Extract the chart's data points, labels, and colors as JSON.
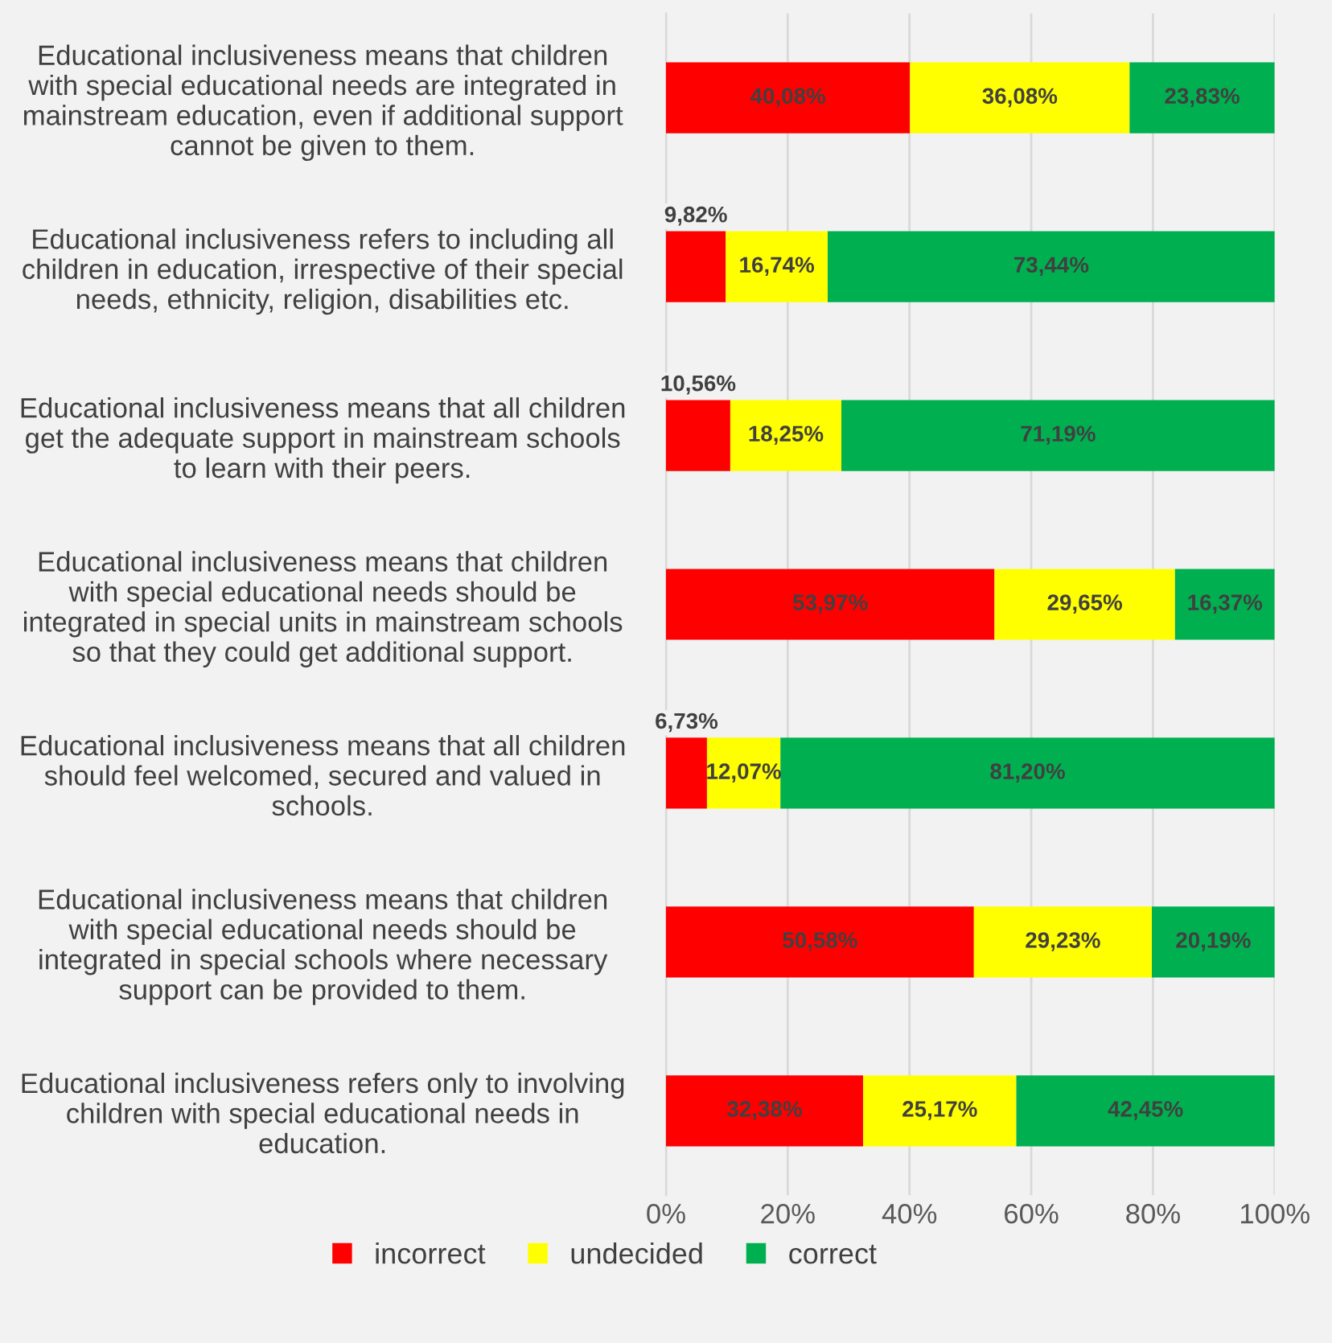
{
  "chart_data": {
    "type": "bar",
    "orientation": "horizontal",
    "stacked": true,
    "categories": [
      "Educational inclusiveness means that children\nwith special educational needs are integrated in\nmainstream education, even if additional support\ncannot be given to them.",
      "Educational inclusiveness refers to including all\nchildren in education, irrespective of their special\nneeds, ethnicity, religion, disabilities etc.",
      "Educational inclusiveness means that all children\nget the adequate support in mainstream schools\nto learn with their peers.",
      "Educational inclusiveness means that children\nwith special educational needs should be\nintegrated in special units in mainstream schools\nso that they could get additional support.",
      "Educational inclusiveness means that all children\nshould feel welcomed, secured and valued in\nschools.",
      "Educational inclusiveness means that children\nwith special educational needs should be\nintegrated in special schools where necessary\nsupport can be provided to them.",
      "Educational inclusiveness refers only to involving\nchildren with special educational needs in\neducation."
    ],
    "series": [
      {
        "name": "incorrect",
        "color": "#ff0000",
        "values": [
          40.08,
          9.82,
          10.56,
          53.97,
          6.73,
          50.58,
          32.38
        ],
        "value_labels": [
          "40,08%",
          "9,82%",
          "10,56%",
          "53,97%",
          "6,73%",
          "50,58%",
          "32,38%"
        ]
      },
      {
        "name": "undecided",
        "color": "#ffff00",
        "values": [
          36.08,
          16.74,
          18.25,
          29.65,
          12.07,
          29.23,
          25.17
        ],
        "value_labels": [
          "36,08%",
          "16,74%",
          "18,25%",
          "29,65%",
          "12,07%",
          "29,23%",
          "25,17%"
        ]
      },
      {
        "name": "correct",
        "color": "#00b050",
        "values": [
          23.83,
          73.44,
          71.19,
          16.37,
          81.2,
          20.19,
          42.45
        ],
        "value_labels": [
          "23,83%",
          "73,44%",
          "71,19%",
          "16,37%",
          "81,20%",
          "20,19%",
          "42,45%"
        ]
      }
    ],
    "xlim": [
      0,
      100
    ],
    "xticks": [
      {
        "value": 0,
        "label": "0%"
      },
      {
        "value": 20,
        "label": "20%"
      },
      {
        "value": 40,
        "label": "40%"
      },
      {
        "value": 60,
        "label": "60%"
      },
      {
        "value": 80,
        "label": "80%"
      },
      {
        "value": 100,
        "label": "100%"
      }
    ],
    "grid": "x",
    "legend": "bottom"
  }
}
